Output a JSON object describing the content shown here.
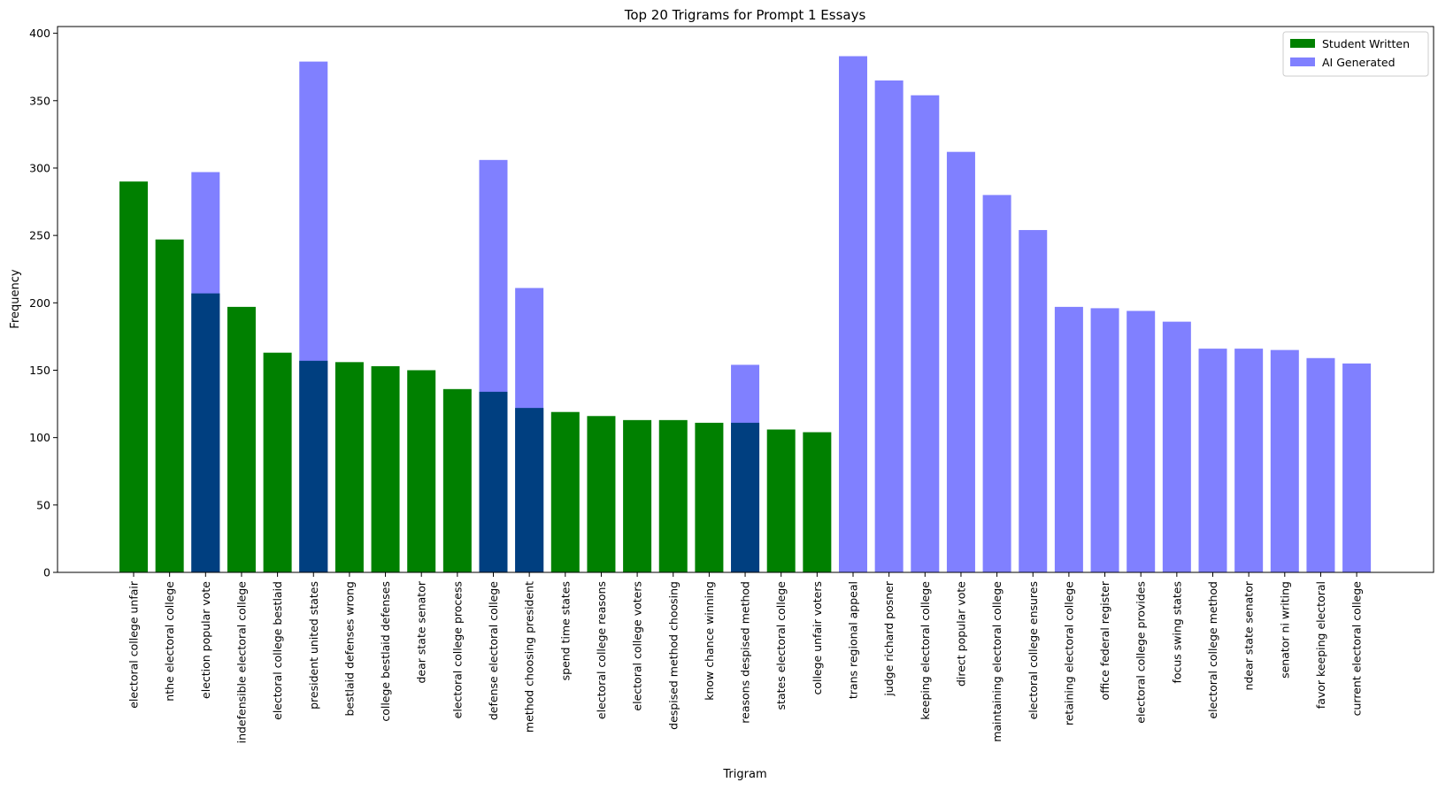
{
  "chart_data": {
    "type": "bar",
    "title": "Top 20 Trigrams for Prompt 1 Essays",
    "xlabel": "Trigram",
    "ylabel": "Frequency",
    "ylim": [
      0,
      400
    ],
    "yticks": [
      0,
      50,
      100,
      150,
      200,
      250,
      300,
      350,
      400
    ],
    "grid": false,
    "legend_position": "top-right",
    "categories": [
      "electoral college unfair",
      "nthe electoral college",
      "election popular vote",
      "indefensible electoral college",
      "electoral college bestlaid",
      "president united states",
      "bestlaid defenses wrong",
      "college bestlaid defenses",
      "dear state senator",
      "electoral college process",
      "defense electoral college",
      "method choosing president",
      "spend time states",
      "electoral college reasons",
      "electoral college voters",
      "despised method choosing",
      "know chance winning",
      "reasons despised method",
      "states electoral college",
      "college unfair voters",
      "trans regional appeal",
      "judge richard posner",
      "keeping electoral college",
      "direct popular vote",
      "maintaining electoral college",
      "electoral college ensures",
      "retaining electoral college",
      "office federal register",
      "electoral college provides",
      "focus swing states",
      "electoral college method",
      "ndear state senator",
      "senator ni writing",
      "favor keeping electoral",
      "current electoral college"
    ],
    "series": [
      {
        "name": "Student Written",
        "color": "#008000",
        "values": [
          290,
          247,
          207,
          197,
          163,
          157,
          156,
          153,
          150,
          136,
          134,
          122,
          119,
          116,
          113,
          113,
          111,
          111,
          106,
          104,
          null,
          null,
          null,
          null,
          null,
          null,
          null,
          null,
          null,
          null,
          null,
          null,
          null,
          null,
          null
        ]
      },
      {
        "name": "AI Generated",
        "color": "#8080ff",
        "opacity": 1,
        "values": [
          null,
          null,
          297,
          null,
          null,
          379,
          null,
          null,
          null,
          null,
          306,
          211,
          null,
          null,
          null,
          null,
          null,
          154,
          null,
          null,
          383,
          365,
          354,
          312,
          280,
          254,
          197,
          196,
          194,
          186,
          166,
          166,
          165,
          159,
          155
        ]
      }
    ],
    "overlap_color": "#003f80"
  }
}
